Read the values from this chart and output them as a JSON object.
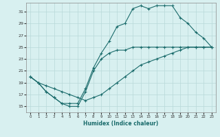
{
  "xlabel": "Humidex (Indice chaleur)",
  "background_color": "#d8f0f0",
  "grid_color": "#b8d8d8",
  "line_color": "#1a6b6b",
  "xlim": [
    -0.5,
    23.5
  ],
  "ylim": [
    14,
    32.5
  ],
  "xticks": [
    0,
    1,
    2,
    3,
    4,
    5,
    6,
    7,
    8,
    9,
    10,
    11,
    12,
    13,
    14,
    15,
    16,
    17,
    18,
    19,
    20,
    21,
    22,
    23
  ],
  "yticks": [
    15,
    17,
    19,
    21,
    23,
    25,
    27,
    29,
    31
  ],
  "line1_x": [
    0,
    1,
    2,
    3,
    4,
    5,
    6,
    7,
    8,
    9,
    10,
    11,
    12,
    13,
    14,
    15,
    16,
    17,
    18,
    19,
    20,
    21,
    22,
    23
  ],
  "line1_y": [
    20,
    19,
    17.5,
    16.5,
    15.5,
    15,
    15,
    17.5,
    21,
    23,
    24,
    24.5,
    24.5,
    25,
    25,
    25,
    25,
    25,
    25,
    25,
    25,
    25,
    25,
    25
  ],
  "line2_x": [
    0,
    1,
    2,
    3,
    4,
    5,
    6,
    7,
    8,
    9,
    10,
    11,
    12,
    13,
    14,
    15,
    16,
    17,
    18,
    19,
    20,
    21,
    22,
    23
  ],
  "line2_y": [
    20,
    19,
    17.5,
    16.5,
    15.5,
    15.5,
    15.5,
    18,
    21.5,
    24,
    26,
    28.5,
    29,
    31.5,
    32,
    31.5,
    32,
    32,
    32,
    30,
    29,
    27.5,
    26.5,
    25
  ],
  "line3_x": [
    0,
    1,
    2,
    3,
    4,
    5,
    6,
    7,
    8,
    9,
    10,
    11,
    12,
    13,
    14,
    15,
    16,
    17,
    18,
    19,
    20,
    21,
    22,
    23
  ],
  "line3_y": [
    20,
    19,
    18.5,
    18,
    17.5,
    17,
    16.5,
    16,
    16.5,
    17,
    18,
    19,
    20,
    21,
    22,
    22.5,
    23,
    23.5,
    24,
    24.5,
    25,
    25,
    25,
    25
  ]
}
